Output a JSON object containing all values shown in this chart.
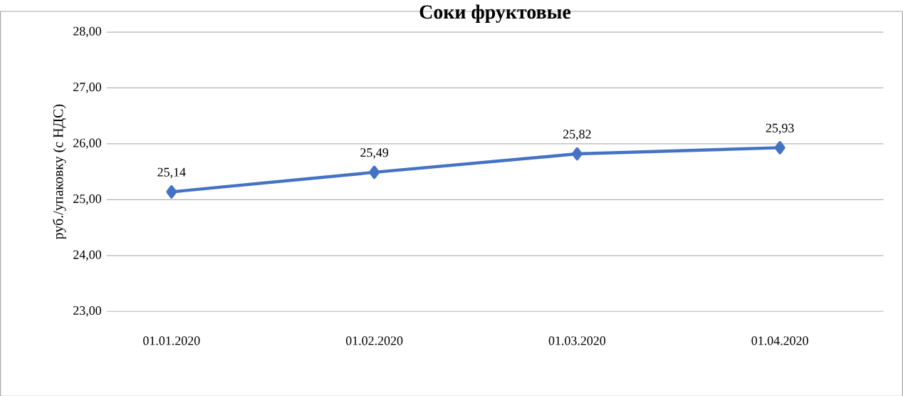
{
  "chart_data": {
    "type": "line",
    "title": "Соки фруктовые",
    "ylabel": "руб./упаковку (с НДС)",
    "categories": [
      "01.01.2020",
      "01.02.2020",
      "01.03.2020",
      "01.04.2020"
    ],
    "series": [
      {
        "color": "#4472c4",
        "values": [
          25.14,
          25.49,
          25.82,
          25.93
        ],
        "value_labels": [
          "25,14",
          "25,49",
          "25,82",
          "25,93"
        ]
      }
    ],
    "ylim": [
      23,
      28
    ],
    "yticks": [
      {
        "value": 23,
        "label": "23,00"
      },
      {
        "value": 24,
        "label": "24,00"
      },
      {
        "value": 25,
        "label": "25,00"
      },
      {
        "value": 26,
        "label": "26,00"
      },
      {
        "value": 27,
        "label": "27,00"
      },
      {
        "value": 28,
        "label": "28,00"
      }
    ],
    "grid": "y",
    "marker": "diamond",
    "line_style": "solid"
  }
}
